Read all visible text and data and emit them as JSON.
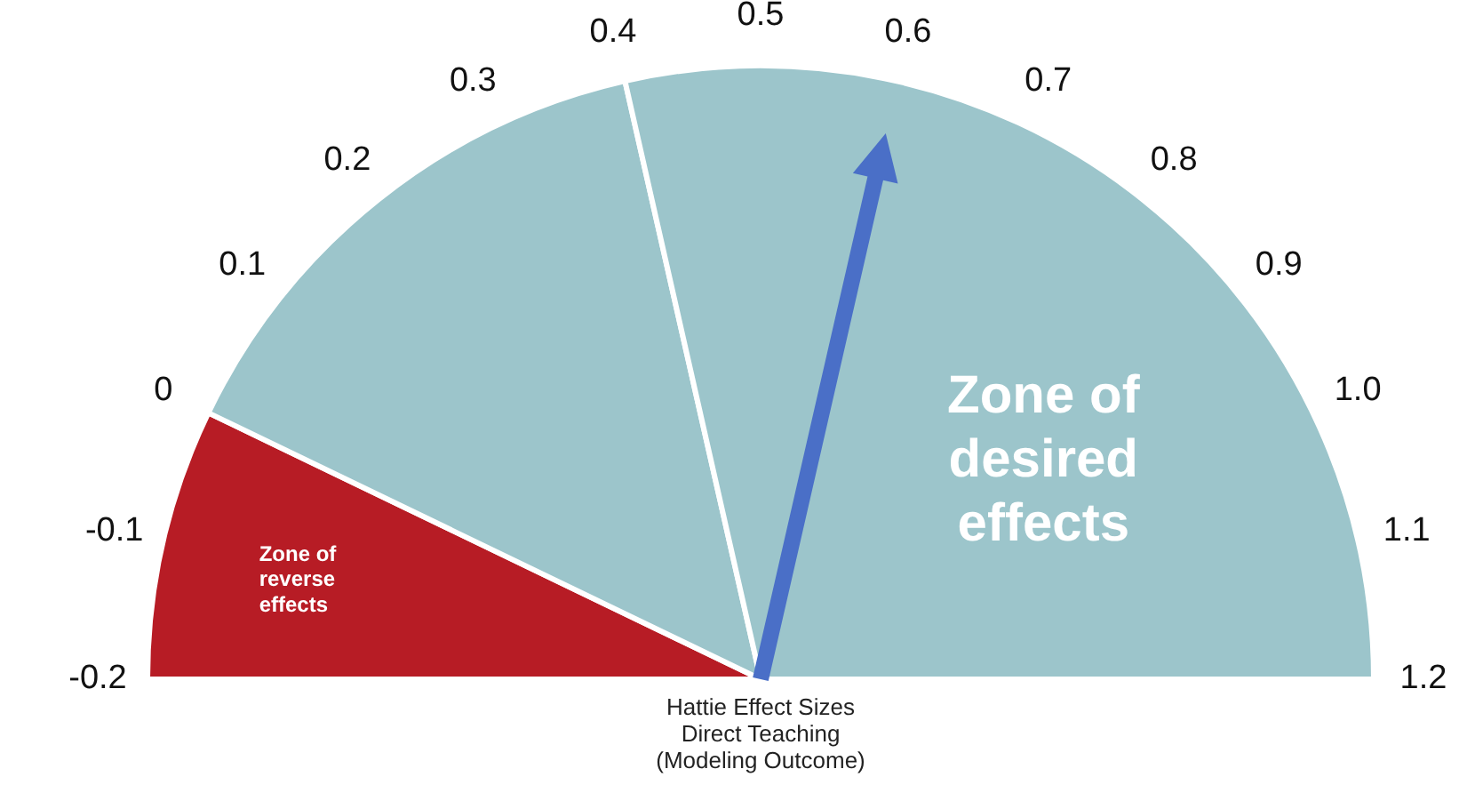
{
  "chart_data": {
    "type": "pie",
    "title": "Hattie Effect Sizes\nDirect Teaching\n(Modeling Outcome)",
    "categories": [
      "Zone of reverse effects",
      null,
      "Zone of desired effects"
    ],
    "values": [
      14.3,
      28.6,
      57.1
    ],
    "colors": [
      "#b71c25",
      "#9cc5cb",
      "#9cc5cb"
    ],
    "needle": "Zone of desired effects",
    "annotations": [
      "-0.2",
      "-0.1",
      "0",
      "0.1",
      "0.2",
      "0.3",
      "0.4",
      "0.5",
      "0.6",
      "0.7",
      "0.8",
      "0.9",
      "1.0",
      "1.1",
      "1.2"
    ]
  }
}
